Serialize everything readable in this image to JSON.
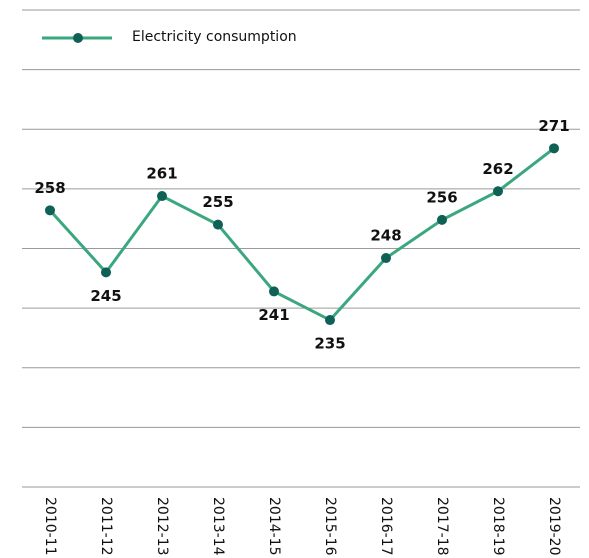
{
  "chart_data": {
    "type": "line",
    "categories": [
      "2010-11",
      "2011-12",
      "2012-13",
      "2013-14",
      "2014-15",
      "2015-16",
      "2016-17",
      "2017-18",
      "2018-19",
      "2019-20"
    ],
    "series": [
      {
        "name": "Electricity consumption",
        "color": "#3aa77f",
        "marker_color": "#0f6155",
        "values": [
          258,
          245,
          261,
          255,
          241,
          235,
          248,
          256,
          262,
          271
        ]
      }
    ],
    "ylim": [
      200,
      300
    ],
    "yticks": [
      200,
      212.5,
      225,
      237.5,
      250,
      262.5,
      275,
      287.5,
      300
    ],
    "grid": true,
    "legend": "top-left"
  }
}
